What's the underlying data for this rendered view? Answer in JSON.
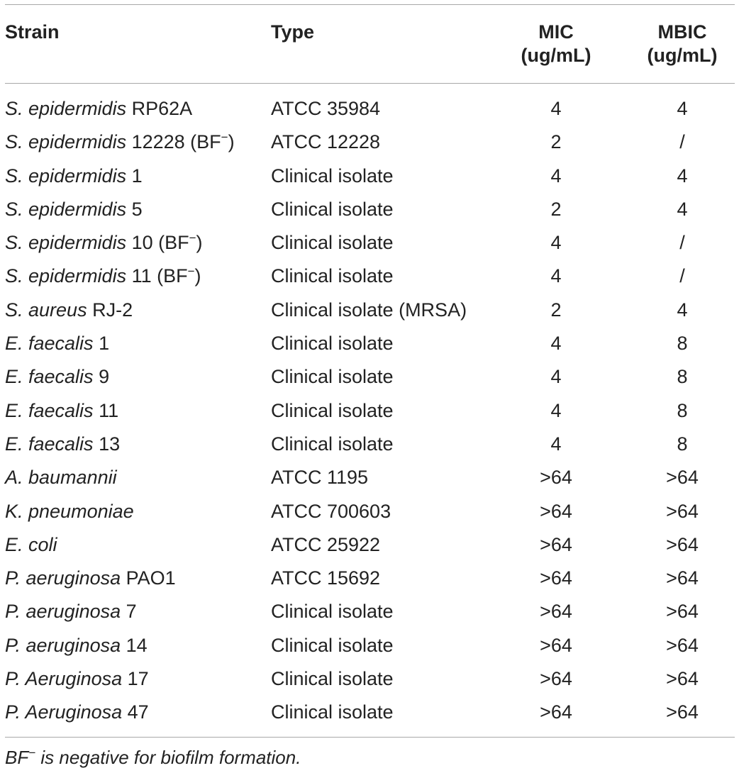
{
  "table": {
    "headers": {
      "strain": "Strain",
      "type": "Type",
      "mic_line1": "MIC",
      "mic_line2": "(ug/mL)",
      "mbic_line1": "MBIC",
      "mbic_line2": "(ug/mL)"
    },
    "rows": [
      {
        "species": "S. epidermidis",
        "suffix": " RP62A",
        "sup": "",
        "suffix2": "",
        "type": "ATCC 35984",
        "mic": "4",
        "mbic": "4"
      },
      {
        "species": "S. epidermidis",
        "suffix": " 12228 (BF",
        "sup": "−",
        "suffix2": ")",
        "type": "ATCC 12228",
        "mic": "2",
        "mbic": "/"
      },
      {
        "species": "S. epidermidis",
        "suffix": " 1",
        "sup": "",
        "suffix2": "",
        "type": "Clinical isolate",
        "mic": "4",
        "mbic": "4"
      },
      {
        "species": "S. epidermidis",
        "suffix": " 5",
        "sup": "",
        "suffix2": "",
        "type": "Clinical isolate",
        "mic": "2",
        "mbic": "4"
      },
      {
        "species": "S. epidermidis",
        "suffix": " 10 (BF",
        "sup": "−",
        "suffix2": ")",
        "type": "Clinical isolate",
        "mic": "4",
        "mbic": "/"
      },
      {
        "species": "S. epidermidis",
        "suffix": " 11 (BF",
        "sup": "−",
        "suffix2": ")",
        "type": "Clinical isolate",
        "mic": "4",
        "mbic": "/"
      },
      {
        "species": "S. aureus",
        "suffix": " RJ-2",
        "sup": "",
        "suffix2": "",
        "type": "Clinical isolate (MRSA)",
        "mic": "2",
        "mbic": "4"
      },
      {
        "species": "E. faecalis",
        "suffix": " 1",
        "sup": "",
        "suffix2": "",
        "type": "Clinical isolate",
        "mic": "4",
        "mbic": "8"
      },
      {
        "species": "E. faecalis",
        "suffix": " 9",
        "sup": "",
        "suffix2": "",
        "type": "Clinical isolate",
        "mic": "4",
        "mbic": "8"
      },
      {
        "species": "E. faecalis",
        "suffix": " 11",
        "sup": "",
        "suffix2": "",
        "type": "Clinical isolate",
        "mic": "4",
        "mbic": "8"
      },
      {
        "species": "E. faecalis",
        "suffix": " 13",
        "sup": "",
        "suffix2": "",
        "type": "Clinical isolate",
        "mic": "4",
        "mbic": "8"
      },
      {
        "species": "A. baumannii",
        "suffix": "",
        "sup": "",
        "suffix2": "",
        "type": "ATCC 1195",
        "mic": ">64",
        "mbic": ">64"
      },
      {
        "species": "K. pneumoniae",
        "suffix": "",
        "sup": "",
        "suffix2": "",
        "type": "ATCC 700603",
        "mic": ">64",
        "mbic": ">64"
      },
      {
        "species": "E. coli",
        "suffix": "",
        "sup": "",
        "suffix2": "",
        "type": "ATCC 25922",
        "mic": ">64",
        "mbic": ">64"
      },
      {
        "species": "P. aeruginosa",
        "suffix": " PAO1",
        "sup": "",
        "suffix2": "",
        "type": "ATCC 15692",
        "mic": ">64",
        "mbic": ">64"
      },
      {
        "species": "P. aeruginosa",
        "suffix": " 7",
        "sup": "",
        "suffix2": "",
        "type": "Clinical isolate",
        "mic": ">64",
        "mbic": ">64"
      },
      {
        "species": "P. aeruginosa",
        "suffix": " 14",
        "sup": "",
        "suffix2": "",
        "type": "Clinical isolate",
        "mic": ">64",
        "mbic": ">64"
      },
      {
        "species": "P. Aeruginosa",
        "suffix": " 17",
        "sup": "",
        "suffix2": "",
        "type": "Clinical isolate",
        "mic": ">64",
        "mbic": ">64"
      },
      {
        "species": "P. Aeruginosa",
        "suffix": " 47",
        "sup": "",
        "suffix2": "",
        "type": "Clinical isolate",
        "mic": ">64",
        "mbic": ">64"
      }
    ]
  },
  "footnote": {
    "prefix": "BF",
    "sup": "−",
    "text": " is negative for biofilm formation."
  },
  "colors": {
    "text": "#222222",
    "rule": "#a8a8a8"
  }
}
